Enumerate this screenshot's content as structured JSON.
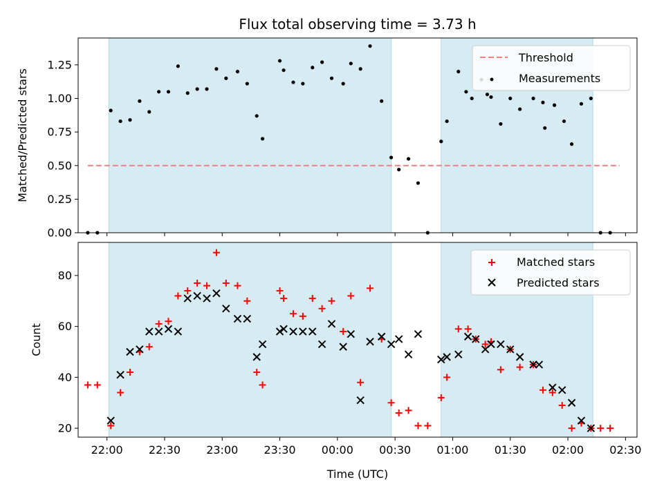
{
  "chart_data": [
    {
      "type": "scatter",
      "title": "Flux total observing time = 3.73 h",
      "ylabel": "Matched/Predicted stars",
      "ylim": [
        0,
        1.45
      ],
      "xlim": [
        "21:45",
        "02:36"
      ],
      "yticks": [
        "0.00",
        "0.25",
        "0.50",
        "0.75",
        "1.00",
        "1.25"
      ],
      "legend_position": "top-right",
      "shaded_intervals": [
        [
          "22:01",
          "00:28"
        ],
        [
          "00:54",
          "02:13"
        ]
      ],
      "threshold": {
        "name": "Threshold",
        "value": 0.5,
        "x_range": [
          "21:50",
          "02:27"
        ],
        "color": "#f08080"
      },
      "series": [
        {
          "name": "Measurements",
          "color": "#000000",
          "points": [
            [
              "21:50",
              0.0
            ],
            [
              "21:55",
              0.0
            ],
            [
              "22:02",
              0.91
            ],
            [
              "22:07",
              0.83
            ],
            [
              "22:12",
              0.84
            ],
            [
              "22:17",
              0.98
            ],
            [
              "22:22",
              0.9
            ],
            [
              "22:27",
              1.05
            ],
            [
              "22:32",
              1.05
            ],
            [
              "22:37",
              1.24
            ],
            [
              "22:42",
              1.04
            ],
            [
              "22:47",
              1.07
            ],
            [
              "22:52",
              1.07
            ],
            [
              "22:57",
              1.22
            ],
            [
              "23:02",
              1.15
            ],
            [
              "23:08",
              1.2
            ],
            [
              "23:13",
              1.11
            ],
            [
              "23:18",
              0.87
            ],
            [
              "23:21",
              0.7
            ],
            [
              "23:30",
              1.28
            ],
            [
              "23:32",
              1.21
            ],
            [
              "23:37",
              1.12
            ],
            [
              "23:42",
              1.11
            ],
            [
              "23:47",
              1.23
            ],
            [
              "23:52",
              1.27
            ],
            [
              "23:57",
              1.15
            ],
            [
              "00:03",
              1.11
            ],
            [
              "00:07",
              1.26
            ],
            [
              "00:12",
              1.22
            ],
            [
              "00:17",
              1.39
            ],
            [
              "00:23",
              0.98
            ],
            [
              "00:28",
              0.56
            ],
            [
              "00:32",
              0.47
            ],
            [
              "00:37",
              0.55
            ],
            [
              "00:42",
              0.37
            ],
            [
              "00:47",
              0.0
            ],
            [
              "00:54",
              0.68
            ],
            [
              "00:57",
              0.83
            ],
            [
              "01:03",
              1.2
            ],
            [
              "01:07",
              1.05
            ],
            [
              "01:10",
              1.0
            ],
            [
              "01:15",
              1.14
            ],
            [
              "01:18",
              1.03
            ],
            [
              "01:20",
              1.01
            ],
            [
              "01:25",
              0.81
            ],
            [
              "01:30",
              1.0
            ],
            [
              "01:35",
              0.92
            ],
            [
              "01:42",
              1.0
            ],
            [
              "01:47",
              0.97
            ],
            [
              "01:48",
              0.78
            ],
            [
              "01:53",
              0.95
            ],
            [
              "01:58",
              0.83
            ],
            [
              "02:02",
              0.66
            ],
            [
              "02:07",
              0.96
            ],
            [
              "02:12",
              1.0
            ],
            [
              "02:17",
              0.0
            ],
            [
              "02:22",
              0.0
            ]
          ]
        }
      ]
    },
    {
      "type": "scatter",
      "xlabel": "Time (UTC)",
      "ylabel": "Count",
      "ylim": [
        16.5,
        93
      ],
      "xlim": [
        "21:45",
        "02:36"
      ],
      "yticks": [
        "20",
        "40",
        "60",
        "80"
      ],
      "xticks": [
        "22:00",
        "22:30",
        "23:00",
        "23:30",
        "00:00",
        "00:30",
        "01:00",
        "01:30",
        "02:00",
        "02:30"
      ],
      "legend_position": "top-right",
      "shaded_intervals": [
        [
          "22:01",
          "00:28"
        ],
        [
          "00:54",
          "02:13"
        ]
      ],
      "series": [
        {
          "name": "Matched stars",
          "color": "#ff0000",
          "marker": "plus",
          "points": [
            [
              "21:50",
              37
            ],
            [
              "21:55",
              37
            ],
            [
              "22:02",
              21
            ],
            [
              "22:07",
              34
            ],
            [
              "22:12",
              42
            ],
            [
              "22:17",
              50
            ],
            [
              "22:22",
              52
            ],
            [
              "22:27",
              61
            ],
            [
              "22:32",
              62
            ],
            [
              "22:37",
              72
            ],
            [
              "22:42",
              74
            ],
            [
              "22:47",
              77
            ],
            [
              "22:52",
              76
            ],
            [
              "22:57",
              89
            ],
            [
              "23:02",
              77
            ],
            [
              "23:08",
              76
            ],
            [
              "23:13",
              70
            ],
            [
              "23:18",
              42
            ],
            [
              "23:21",
              37
            ],
            [
              "23:30",
              74
            ],
            [
              "23:32",
              71
            ],
            [
              "23:37",
              65
            ],
            [
              "23:42",
              64
            ],
            [
              "23:47",
              71
            ],
            [
              "23:52",
              67
            ],
            [
              "23:57",
              70
            ],
            [
              "00:03",
              58
            ],
            [
              "00:07",
              72
            ],
            [
              "00:12",
              38
            ],
            [
              "00:17",
              75
            ],
            [
              "00:23",
              55
            ],
            [
              "00:28",
              30
            ],
            [
              "00:32",
              26
            ],
            [
              "00:37",
              27
            ],
            [
              "00:42",
              21
            ],
            [
              "00:47",
              21
            ],
            [
              "00:54",
              32
            ],
            [
              "00:57",
              40
            ],
            [
              "01:03",
              59
            ],
            [
              "01:08",
              59
            ],
            [
              "01:12",
              55
            ],
            [
              "01:17",
              53
            ],
            [
              "01:20",
              54
            ],
            [
              "01:25",
              43
            ],
            [
              "01:30",
              51
            ],
            [
              "01:35",
              44
            ],
            [
              "01:42",
              45
            ],
            [
              "01:47",
              35
            ],
            [
              "01:52",
              34
            ],
            [
              "01:57",
              29
            ],
            [
              "02:02",
              20
            ],
            [
              "02:07",
              22
            ],
            [
              "02:12",
              20
            ],
            [
              "02:17",
              20
            ],
            [
              "02:22",
              20
            ]
          ]
        },
        {
          "name": "Predicted stars",
          "color": "#000000",
          "marker": "x",
          "points": [
            [
              "22:02",
              23
            ],
            [
              "22:07",
              41
            ],
            [
              "22:12",
              50
            ],
            [
              "22:17",
              51
            ],
            [
              "22:22",
              58
            ],
            [
              "22:27",
              58
            ],
            [
              "22:32",
              59
            ],
            [
              "22:37",
              58
            ],
            [
              "22:42",
              71
            ],
            [
              "22:47",
              72
            ],
            [
              "22:52",
              71
            ],
            [
              "22:57",
              73
            ],
            [
              "23:02",
              67
            ],
            [
              "23:08",
              63
            ],
            [
              "23:13",
              63
            ],
            [
              "23:18",
              48
            ],
            [
              "23:21",
              53
            ],
            [
              "23:30",
              58
            ],
            [
              "23:32",
              59
            ],
            [
              "23:37",
              58
            ],
            [
              "23:42",
              58
            ],
            [
              "23:47",
              58
            ],
            [
              "23:52",
              53
            ],
            [
              "23:57",
              61
            ],
            [
              "00:03",
              52
            ],
            [
              "00:07",
              57
            ],
            [
              "00:12",
              31
            ],
            [
              "00:17",
              54
            ],
            [
              "00:23",
              56
            ],
            [
              "00:28",
              53
            ],
            [
              "00:32",
              55
            ],
            [
              "00:37",
              49
            ],
            [
              "00:42",
              57
            ],
            [
              "00:54",
              47
            ],
            [
              "00:57",
              48
            ],
            [
              "01:03",
              49
            ],
            [
              "01:08",
              56
            ],
            [
              "01:12",
              55
            ],
            [
              "01:17",
              51
            ],
            [
              "01:20",
              53
            ],
            [
              "01:25",
              53
            ],
            [
              "01:30",
              51
            ],
            [
              "01:35",
              48
            ],
            [
              "01:42",
              45
            ],
            [
              "01:45",
              45
            ],
            [
              "01:52",
              36
            ],
            [
              "01:57",
              35
            ],
            [
              "02:02",
              30
            ],
            [
              "02:07",
              23
            ],
            [
              "02:12",
              20
            ]
          ]
        }
      ]
    }
  ],
  "colors": {
    "shade": "#add8e6",
    "axes": "#000000"
  }
}
